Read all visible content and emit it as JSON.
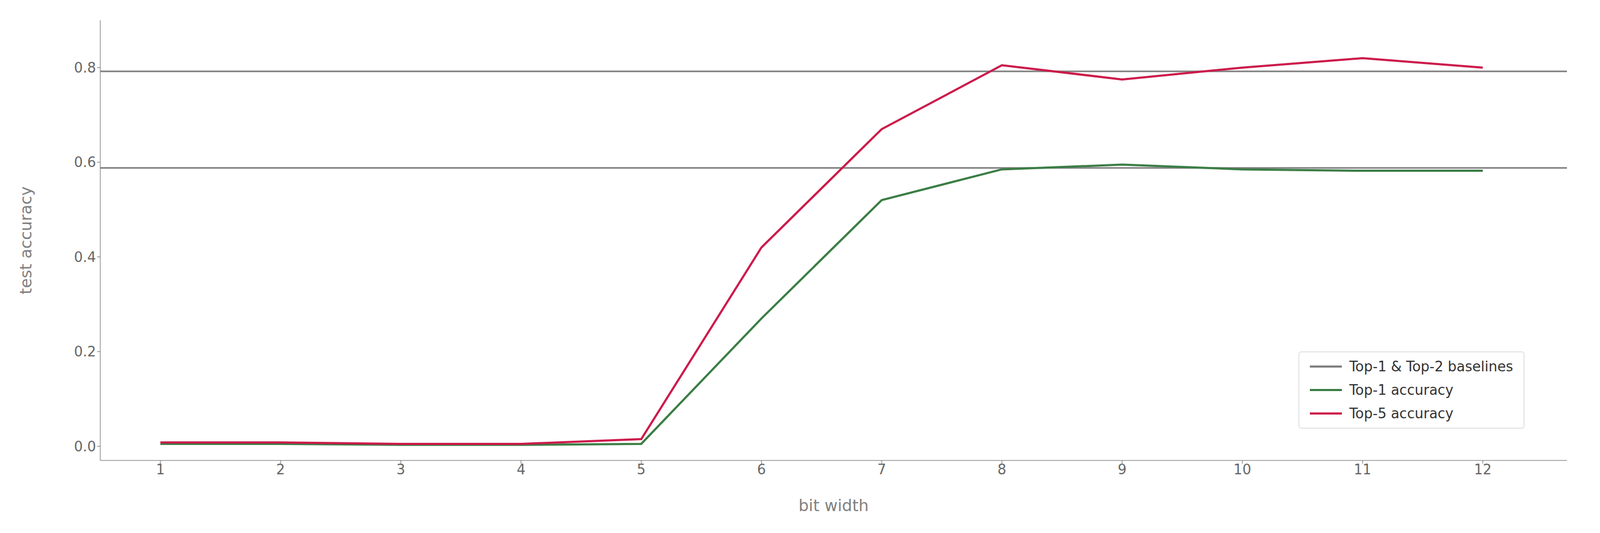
{
  "chart_data": {
    "type": "line",
    "x": [
      1,
      2,
      3,
      4,
      5,
      6,
      7,
      8,
      9,
      10,
      11,
      12
    ],
    "series": [
      {
        "name": "Top-1 accuracy",
        "color": "#3a7d44",
        "values": [
          0.005,
          0.005,
          0.003,
          0.003,
          0.005,
          0.27,
          0.52,
          0.585,
          0.595,
          0.585,
          0.582,
          0.582
        ]
      },
      {
        "name": "Top-5 accuracy",
        "color": "#cc1a4a",
        "values": [
          0.008,
          0.008,
          0.005,
          0.005,
          0.015,
          0.42,
          0.67,
          0.805,
          0.775,
          0.8,
          0.82,
          0.8
        ]
      }
    ],
    "baselines": {
      "name": "Top-1 & Top-2 baselines",
      "color": "#808080",
      "values": [
        0.792,
        0.588
      ]
    },
    "xlabel": "bit width",
    "ylabel": "test accuracy",
    "xlim": [
      0.5,
      12.7
    ],
    "ylim": [
      -0.03,
      0.9
    ],
    "xticks": [
      1,
      2,
      3,
      4,
      5,
      6,
      7,
      8,
      9,
      10,
      11,
      12
    ],
    "yticks": [
      {
        "value": 0,
        "label": "0.0"
      },
      0.2,
      0.4,
      0.6,
      0.8
    ],
    "legend": "lower right",
    "grid": false
  }
}
